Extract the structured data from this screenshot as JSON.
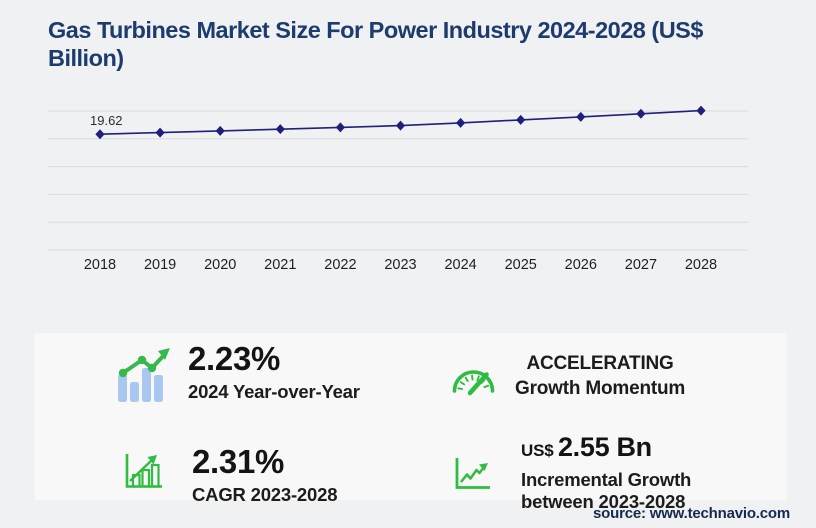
{
  "header": {
    "title": "Gas Turbines Market Size For Power Industry 2024-2028 (US$ Billion)"
  },
  "chart_data": {
    "type": "line",
    "title": "Gas Turbines Market Size For Power Industry 2024-2028 (US$ Billion)",
    "x": [
      2018,
      2019,
      2020,
      2021,
      2022,
      2023,
      2024,
      2025,
      2026,
      2027,
      2028
    ],
    "series": [
      {
        "name": "market_size_usd_bn",
        "values": [
          19.62,
          19.9,
          20.19,
          20.48,
          20.78,
          21.08,
          21.55,
          22.05,
          22.56,
          23.09,
          23.63
        ]
      }
    ],
    "data_labels": [
      {
        "x": 2018,
        "text": "19.62"
      }
    ],
    "ylim": [
      0,
      25
    ],
    "gridline_count": 6,
    "grid": "horizontal",
    "legend": false,
    "marker": "diamond",
    "xlabel": "",
    "ylabel": ""
  },
  "stats": {
    "yoy": {
      "icon": "bar-chart-trend-icon",
      "value": "2.23%",
      "label": "2024 Year-over-Year"
    },
    "momentum": {
      "icon": "speedometer-icon",
      "line1": "ACCELERATING",
      "line2": "Growth Momentum"
    },
    "cagr": {
      "icon": "bar-chart-growth-icon",
      "value": "2.31%",
      "label": "CAGR 2023-2028"
    },
    "incremental": {
      "icon": "trend-arrow-axis-icon",
      "currency": "US$",
      "value": "2.55 Bn",
      "label_line1": "Incremental Growth",
      "label_line2": "between 2023-2028"
    }
  },
  "footer": {
    "source": "source: www.technavio.com"
  },
  "colors": {
    "title_navy": "#1d3c6d",
    "line_navy": "#20207a",
    "green": "#2fbc41",
    "bar_blue": "#a9c8f1",
    "grid": "#d9dadc",
    "panel": "#f8f8f9",
    "background": "#f0f1f3",
    "text_dark": "#1c1c1c",
    "source_navy": "#152a4e"
  }
}
